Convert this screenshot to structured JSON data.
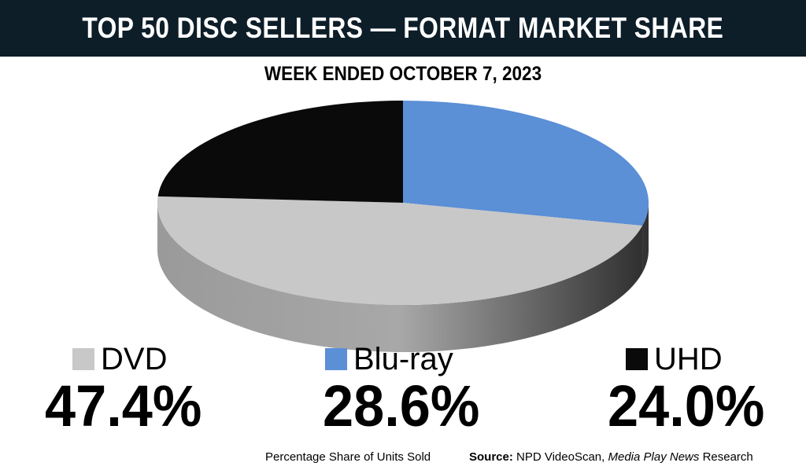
{
  "header": {
    "title": "TOP 50 DISC SELLERS — FORMAT MARKET SHARE"
  },
  "chart_data": {
    "type": "pie",
    "title": "TOP 50 DISC SELLERS — FORMAT MARKET SHARE",
    "subtitle": "WEEK ENDED OCTOBER 7, 2023",
    "slices": [
      {
        "name": "DVD",
        "value": 47.4,
        "label": "47.4%",
        "color": "#c8c8c8"
      },
      {
        "name": "Blu-ray",
        "value": 28.6,
        "label": "28.6%",
        "color": "#5b8fd6"
      },
      {
        "name": "UHD",
        "value": 24.0,
        "label": "24.0%",
        "color": "#0a0a0a"
      }
    ],
    "units": "Percentage Share of Units Sold",
    "legend_placement": "bottom"
  },
  "footer": {
    "note": "Percentage Share of Units Sold",
    "source_label": "Source:",
    "source_text": "NPD VideoScan,",
    "source_italic": "Media Play News",
    "source_tail": "Research"
  }
}
